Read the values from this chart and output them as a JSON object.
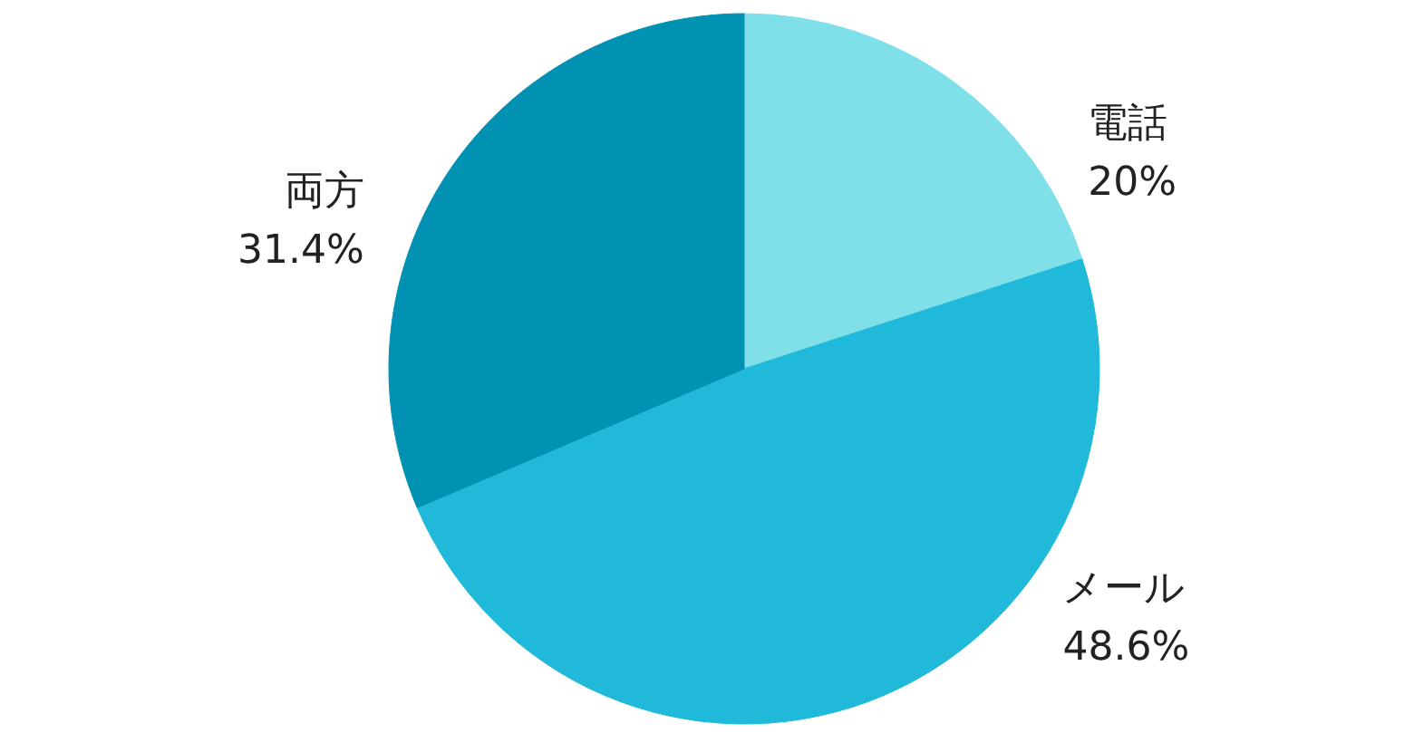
{
  "chart_data": {
    "type": "pie",
    "categories": [
      "電話",
      "メール",
      "両方"
    ],
    "values": [
      20,
      48.6,
      31.4
    ],
    "value_labels": [
      "20%",
      "48.6%",
      "31.4%"
    ],
    "colors": [
      "#7fe0ea",
      "#20b9da",
      "#0192b3"
    ],
    "legend": false
  }
}
